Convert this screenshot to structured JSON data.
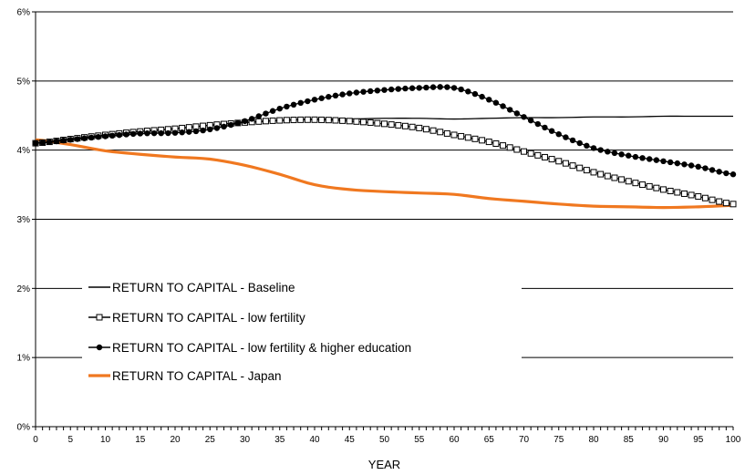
{
  "chart_data": {
    "type": "line",
    "title": "",
    "xlabel": "YEAR",
    "ylabel": "",
    "xlim": [
      0,
      100
    ],
    "ylim": [
      0,
      6
    ],
    "x_ticks": [
      0,
      5,
      10,
      15,
      20,
      25,
      30,
      35,
      40,
      45,
      50,
      55,
      60,
      65,
      70,
      75,
      80,
      85,
      90,
      95,
      100
    ],
    "x_tick_labels": [
      "0",
      "5",
      "10",
      "15",
      "20",
      "25",
      "30",
      "35",
      "40",
      "45",
      "50",
      "55",
      "60",
      "65",
      "70",
      "75",
      "80",
      "85",
      "90",
      "95",
      "100"
    ],
    "y_ticks": [
      0,
      1,
      2,
      3,
      4,
      5,
      6
    ],
    "y_tick_labels": [
      "0%",
      "1%",
      "2%",
      "3%",
      "4%",
      "5%",
      "6%"
    ],
    "grid": "horizontal",
    "legend_position": "bottom-left",
    "series": [
      {
        "name": "RETURN TO CAPITAL - Baseline",
        "color": "#000000",
        "marker": "none",
        "x": [
          0,
          5,
          10,
          15,
          20,
          25,
          30,
          35,
          40,
          45,
          50,
          55,
          60,
          65,
          70,
          75,
          80,
          85,
          90,
          95,
          100
        ],
        "values": [
          4.1,
          4.16,
          4.22,
          4.27,
          4.31,
          4.36,
          4.4,
          4.43,
          4.45,
          4.45,
          4.46,
          4.46,
          4.45,
          4.46,
          4.47,
          4.47,
          4.48,
          4.48,
          4.49,
          4.49,
          4.49
        ]
      },
      {
        "name": "RETURN TO CAPITAL - low fertility",
        "color": "#000000",
        "marker": "square-open",
        "x": [
          0,
          5,
          10,
          15,
          20,
          25,
          30,
          35,
          40,
          45,
          50,
          55,
          60,
          65,
          70,
          75,
          80,
          85,
          90,
          95,
          100
        ],
        "values": [
          4.1,
          4.16,
          4.22,
          4.27,
          4.31,
          4.36,
          4.4,
          4.43,
          4.44,
          4.42,
          4.38,
          4.32,
          4.22,
          4.12,
          3.98,
          3.84,
          3.68,
          3.55,
          3.43,
          3.33,
          3.22
        ]
      },
      {
        "name": "RETURN TO CAPITAL - low fertility & higher education",
        "color": "#000000",
        "marker": "circle-filled",
        "x": [
          0,
          5,
          10,
          15,
          20,
          25,
          30,
          35,
          40,
          45,
          50,
          55,
          60,
          65,
          70,
          75,
          80,
          85,
          90,
          95,
          100
        ],
        "values": [
          4.1,
          4.15,
          4.2,
          4.24,
          4.25,
          4.3,
          4.42,
          4.6,
          4.73,
          4.82,
          4.87,
          4.9,
          4.9,
          4.73,
          4.48,
          4.23,
          4.03,
          3.92,
          3.84,
          3.76,
          3.65
        ]
      },
      {
        "name": "RETURN TO CAPITAL - Japan",
        "color": "#F07820",
        "marker": "none",
        "x": [
          0,
          5,
          10,
          15,
          20,
          25,
          30,
          35,
          40,
          45,
          50,
          55,
          60,
          65,
          70,
          75,
          80,
          85,
          90,
          95,
          100
        ],
        "values": [
          4.15,
          4.08,
          3.99,
          3.94,
          3.9,
          3.87,
          3.78,
          3.65,
          3.5,
          3.43,
          3.4,
          3.38,
          3.36,
          3.3,
          3.26,
          3.22,
          3.19,
          3.18,
          3.17,
          3.18,
          3.2
        ]
      }
    ]
  }
}
